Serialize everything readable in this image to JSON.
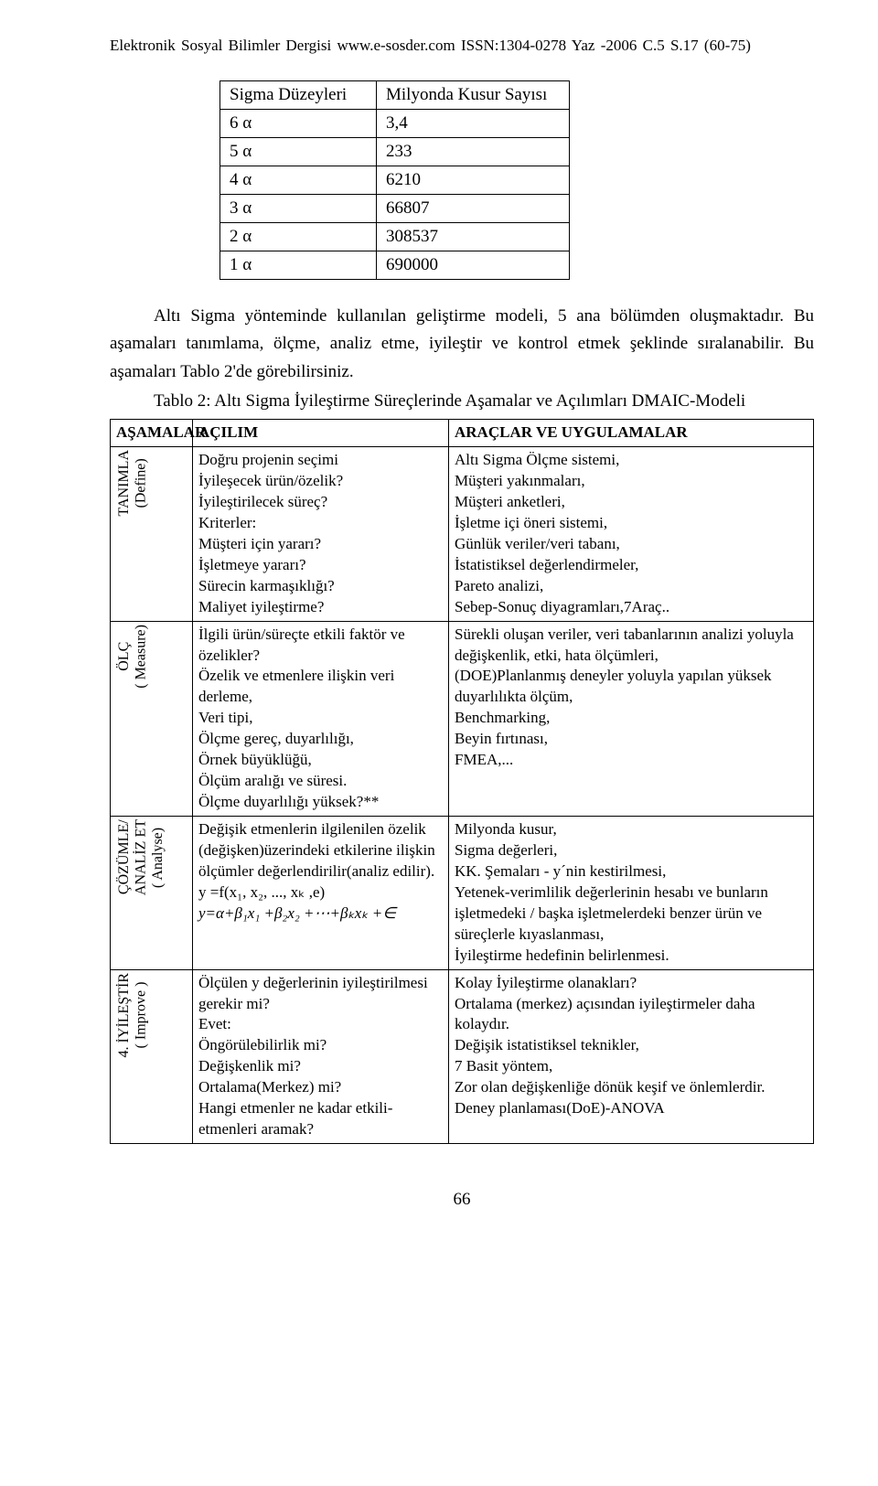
{
  "header": "Elektronik Sosyal Bilimler Dergisi www.e-sosder.com ISSN:1304-0278 Yaz -2006 C.5 S.17 (60-75)",
  "sigma_table": {
    "headers": [
      "Sigma Düzeyleri",
      "Milyonda Kusur Sayısı"
    ],
    "rows": [
      [
        "6 α",
        "3,4"
      ],
      [
        "5 α",
        "233"
      ],
      [
        "4 α",
        "6210"
      ],
      [
        "3 α",
        "66807"
      ],
      [
        "2 α",
        "308537"
      ],
      [
        "1 α",
        "690000"
      ]
    ]
  },
  "paragraph1": "Altı Sigma yönteminde kullanılan geliştirme modeli, 5 ana bölümden oluşmaktadır. Bu aşamaları tanımlama, ölçme, analiz etme, iyileştir ve kontrol etmek şeklinde sıralanabilir. Bu aşamaları Tablo 2'de görebilirsiniz.",
  "caption": "Tablo 2: Altı Sigma İyileştirme Süreçlerinde Aşamalar ve Açılımları  DMAIC-Modeli",
  "dmaic": {
    "headers": [
      "AŞAMALAR",
      "AÇILIM",
      "ARAÇLAR VE UYGULAMALAR"
    ],
    "rows": [
      {
        "phase": "TANIMLA\n(Define)",
        "open": "Doğru projenin seçimi\nİyileşecek ürün/özelik?\nİyileştirilecek süreç?\nKriterler:\nMüşteri için yararı?\nİşletmeye yararı?\nSürecin karmaşıklığı?\nMaliyet  iyileştirme?",
        "tools": "Altı Sigma  Ölçme sistemi,\nMüşteri yakınmaları,\nMüşteri anketleri,\nİşletme içi öneri sistemi,\nGünlük veriler/veri tabanı,\nİstatistiksel değerlendirmeler,\nPareto analizi,\nSebep-Sonuç diyagramları,7Araç.."
      },
      {
        "phase": "ÖLÇ\n( Measure)",
        "open": "İlgili ürün/süreçte etkili faktör ve özelikler?\nÖzelik ve etmenlere ilişkin veri  derleme,\nVeri tipi,\nÖlçme gereç, duyarlılığı,\nÖrnek büyüklüğü,\nÖlçüm aralığı ve süresi.\nÖlçme duyarlılığı yüksek?**",
        "tools": "Sürekli oluşan veriler, veri tabanlarının analizi yoluyla değişkenlik, etki, hata ölçümleri,\n(DOE)Planlanmış deneyler yoluyla yapılan yüksek duyarlılıkta ölçüm,\nBenchmarking,\nBeyin fırtınası,\nFMEA,..."
      },
      {
        "phase": "ÇÖZÜMLE/\nANALİZ ET\n( Analyse)",
        "open_pre": "Değişik etmenlerin ilgilenilen özelik (değişken)üzerindeki etkilerine ilişkin ölçümler değerlendirilir(analiz edilir).\n      y =f(x₁, x₂, ..., xₖ ,e)",
        "eqn": " y=α+β₁x₁ +β₂x₂ +⋯+βₖxₖ +∈",
        "tools": "Milyonda kusur,\nSigma değerleri,\nKK. Şemaları - y´nin  kestirilmesi,\nYetenek-verimlilik değerlerinin hesabı  ve bunların işletmedeki  / başka işletmelerdeki benzer ürün ve süreçlerle kıyaslanması,\nİyileştirme hedefinin belirlenmesi."
      },
      {
        "phase": "4. İYİLEŞTİR\n( Improve )",
        "open": "Ölçülen y değerlerinin iyileştirilmesi gerekir mi?\nEvet:\nÖngörülebilirlik mi?\nDeğişkenlik mi?\nOrtalama(Merkez) mi?\nHangi etmenler ne kadar etkili-etmenleri aramak?",
        "tools": "Kolay İyileştirme olanakları?\nOrtalama (merkez) açısından iyileştirmeler  daha kolaydır.\nDeğişik istatistiksel teknikler,\n7 Basit yöntem,\nZor olan değişkenliğe dönük  keşif ve önlemlerdir.\nDeney planlaması(DoE)-ANOVA"
      }
    ]
  },
  "page_number": "66"
}
